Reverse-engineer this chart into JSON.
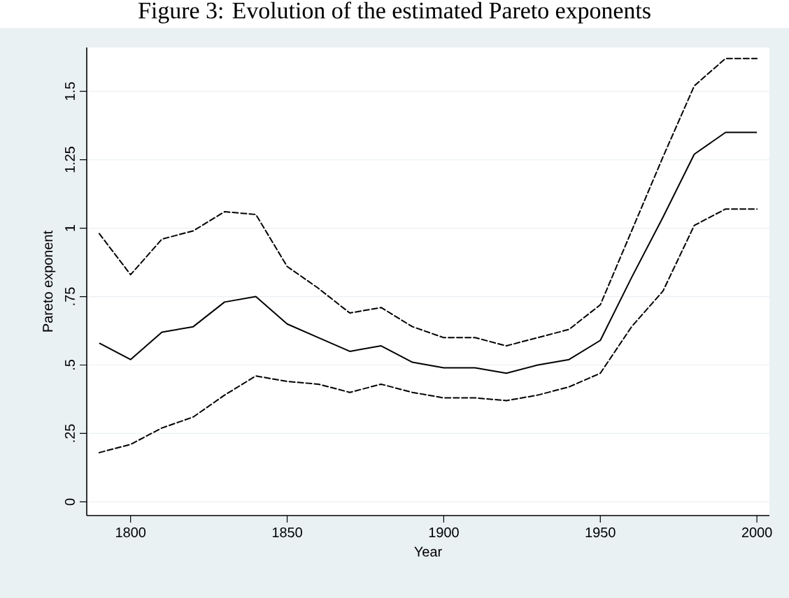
{
  "chart_data": {
    "type": "line",
    "title": "Figure 3: Evolution of the estimated Pareto exponents",
    "xlabel": "Year",
    "ylabel": "Pareto exponent",
    "x": [
      1790,
      1800,
      1810,
      1820,
      1830,
      1840,
      1850,
      1860,
      1870,
      1880,
      1890,
      1900,
      1910,
      1920,
      1930,
      1940,
      1950,
      1960,
      1970,
      1980,
      1990,
      2000
    ],
    "series": [
      {
        "color": "#000000",
        "line_style": "dashed",
        "values": [
          0.98,
          0.83,
          0.96,
          0.99,
          1.06,
          1.05,
          0.86,
          0.78,
          0.69,
          0.71,
          0.64,
          0.6,
          0.6,
          0.57,
          0.6,
          0.63,
          0.72,
          0.99,
          1.26,
          1.52,
          1.62,
          1.62
        ]
      },
      {
        "color": "#000000",
        "line_style": "solid",
        "values": [
          0.58,
          0.52,
          0.62,
          0.64,
          0.73,
          0.75,
          0.65,
          0.6,
          0.55,
          0.57,
          0.51,
          0.49,
          0.49,
          0.47,
          0.5,
          0.52,
          0.59,
          0.82,
          1.04,
          1.27,
          1.35,
          1.35
        ]
      },
      {
        "color": "#000000",
        "line_style": "dashed",
        "values": [
          0.18,
          0.21,
          0.27,
          0.31,
          0.39,
          0.46,
          0.44,
          0.43,
          0.4,
          0.43,
          0.4,
          0.38,
          0.38,
          0.37,
          0.39,
          0.42,
          0.47,
          0.64,
          0.77,
          1.01,
          1.07,
          1.07
        ]
      }
    ],
    "xlim": [
      1786,
      2004
    ],
    "ylim": [
      -0.05,
      1.66
    ],
    "xticks": [
      1800,
      1850,
      1900,
      1950,
      2000
    ],
    "yticks": [
      0,
      {
        "value": 0.25,
        "label": ".25"
      },
      {
        "value": 0.5,
        "label": ".5"
      },
      {
        "value": 0.75,
        "label": ".75"
      },
      1,
      1.25,
      1.5
    ],
    "grid": "y",
    "marker": "none"
  }
}
